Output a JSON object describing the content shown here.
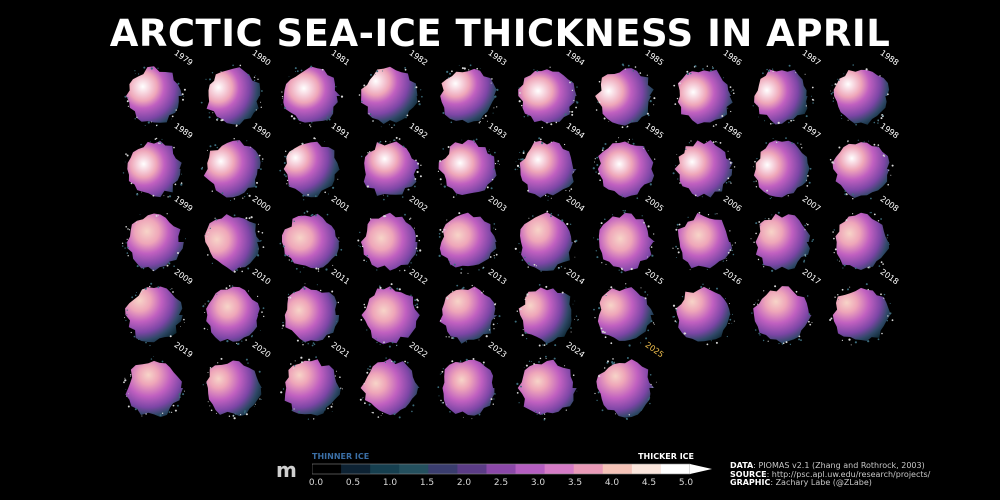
{
  "title": "ARCTIC SEA-ICE THICKNESS IN APRIL",
  "years": [
    "1979",
    "1980",
    "1981",
    "1982",
    "1983",
    "1984",
    "1985",
    "1986",
    "1987",
    "1988",
    "1989",
    "1990",
    "1991",
    "1992",
    "1993",
    "1994",
    "1995",
    "1996",
    "1997",
    "1998",
    "1999",
    "2000",
    "2001",
    "2002",
    "2003",
    "2004",
    "2005",
    "2006",
    "2007",
    "2008",
    "2009",
    "2010",
    "2011",
    "2012",
    "2013",
    "2014",
    "2015",
    "2016",
    "2017",
    "2018",
    "2019",
    "2020",
    "2021",
    "2022",
    "2023",
    "2024",
    "2025"
  ],
  "highlight_year": "2025",
  "colorbar": {
    "unit": "m",
    "thinner_label": "THINNER ICE",
    "thicker_label": "THICKER ICE",
    "ticks": [
      "0.0",
      "0.5",
      "1.0",
      "1.5",
      "2.0",
      "2.5",
      "3.0",
      "3.5",
      "4.0",
      "4.5",
      "5.0"
    ],
    "range": [
      0,
      5
    ],
    "extend": "max",
    "colors": [
      "#000000",
      "#0d2233",
      "#163f4f",
      "#24505e",
      "#3a3d6e",
      "#5b3c86",
      "#8b48a8",
      "#b45ec0",
      "#d57bc6",
      "#e99ab8",
      "#f5c3b8",
      "#fbe6dd",
      "#ffffff"
    ]
  },
  "source": {
    "data_label": "DATA",
    "data_value": ": PIOMAS v2.1 (Zhang and Rothrock, 2003)",
    "source_label": "SOURCE",
    "source_value": ": http://psc.apl.uw.edu/research/projects/",
    "graphic_label": "GRAPHIC",
    "graphic_value": ": Zachary Labe (@ZLabe)"
  }
}
